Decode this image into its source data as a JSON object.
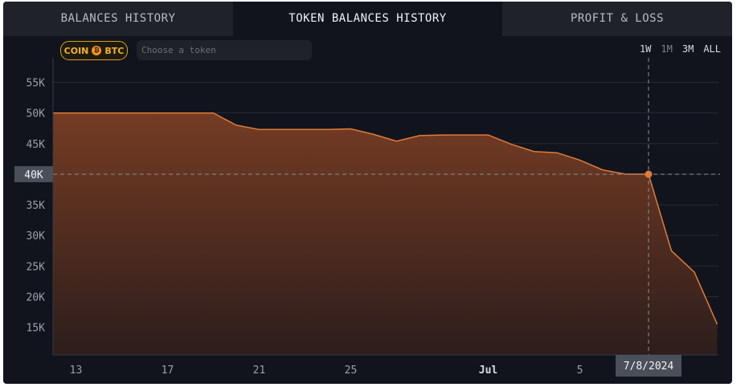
{
  "tabs": [
    {
      "label": "BALANCES HISTORY"
    },
    {
      "label": "TOKEN BALANCES HISTORY"
    },
    {
      "label": "PROFIT & LOSS"
    }
  ],
  "filter": {
    "coin_label": "COIN",
    "btc_symbol": "₿",
    "btc_label": "BTC",
    "token_placeholder": "Choose a token"
  },
  "ranges": [
    "1W",
    "1M",
    "3M",
    "ALL"
  ],
  "colors": {
    "accent": "#e07b39",
    "coin_chip": "#f0b429"
  },
  "crosshair": {
    "y_label": "40K",
    "x_label": "7/8/2024"
  },
  "chart_data": {
    "type": "area",
    "x_tick_labels": [
      "13",
      "17",
      "21",
      "25",
      "Jul",
      "5"
    ],
    "y_tick_labels": [
      "55K",
      "50K",
      "45K",
      "40K",
      "35K",
      "30K",
      "25K",
      "20K",
      "15K"
    ],
    "y_ticks": [
      55000,
      50000,
      45000,
      40000,
      35000,
      30000,
      25000,
      20000,
      15000
    ],
    "ylim": [
      10500,
      59000
    ],
    "x_dates": [
      "2024-06-12",
      "2024-06-13",
      "2024-06-14",
      "2024-06-15",
      "2024-06-16",
      "2024-06-17",
      "2024-06-18",
      "2024-06-19",
      "2024-06-20",
      "2024-06-21",
      "2024-06-22",
      "2024-06-23",
      "2024-06-24",
      "2024-06-25",
      "2024-06-26",
      "2024-06-27",
      "2024-06-28",
      "2024-06-29",
      "2024-06-30",
      "2024-07-01",
      "2024-07-02",
      "2024-07-03",
      "2024-07-04",
      "2024-07-05",
      "2024-07-06",
      "2024-07-07",
      "2024-07-08",
      "2024-07-09",
      "2024-07-10",
      "2024-07-11"
    ],
    "values": [
      50000,
      50000,
      50000,
      50000,
      50000,
      50000,
      50000,
      50000,
      48000,
      47300,
      47300,
      47300,
      47300,
      47400,
      46500,
      45400,
      46300,
      46400,
      46400,
      46400,
      44900,
      43700,
      43500,
      42300,
      40700,
      40000,
      40000,
      27500,
      24000,
      15500
    ],
    "highlight": {
      "date": "2024-07-08",
      "value": 40000
    }
  }
}
